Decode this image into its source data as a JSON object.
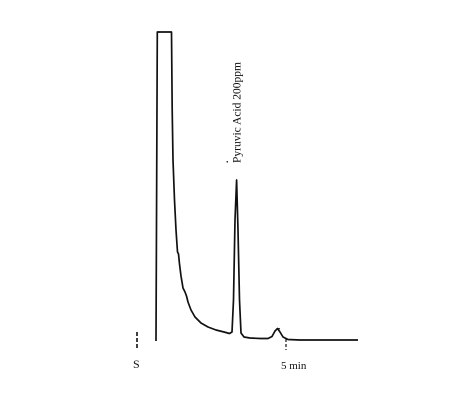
{
  "chart_data": {
    "type": "line",
    "xlabel": "",
    "ylabel": "",
    "x_unit": "min",
    "grid": false,
    "legend": "none",
    "line_color": "#111111",
    "annotations": [
      {
        "text": "Pyruvic Acid 200ppm",
        "x": 3.05,
        "peak_height": 0.58
      }
    ],
    "markers": [
      {
        "label": "S",
        "x": 0
      },
      {
        "label": "5 min",
        "x": 5
      }
    ],
    "peaks": [
      {
        "label": "",
        "x": 0.75,
        "height": 1.0,
        "note": "solvent peak, off-scale"
      },
      {
        "label": "Pyruvic Acid 200ppm",
        "x": 3.05,
        "height": 0.58
      },
      {
        "label": "",
        "x": 4.8,
        "height": 0.04
      }
    ]
  }
}
